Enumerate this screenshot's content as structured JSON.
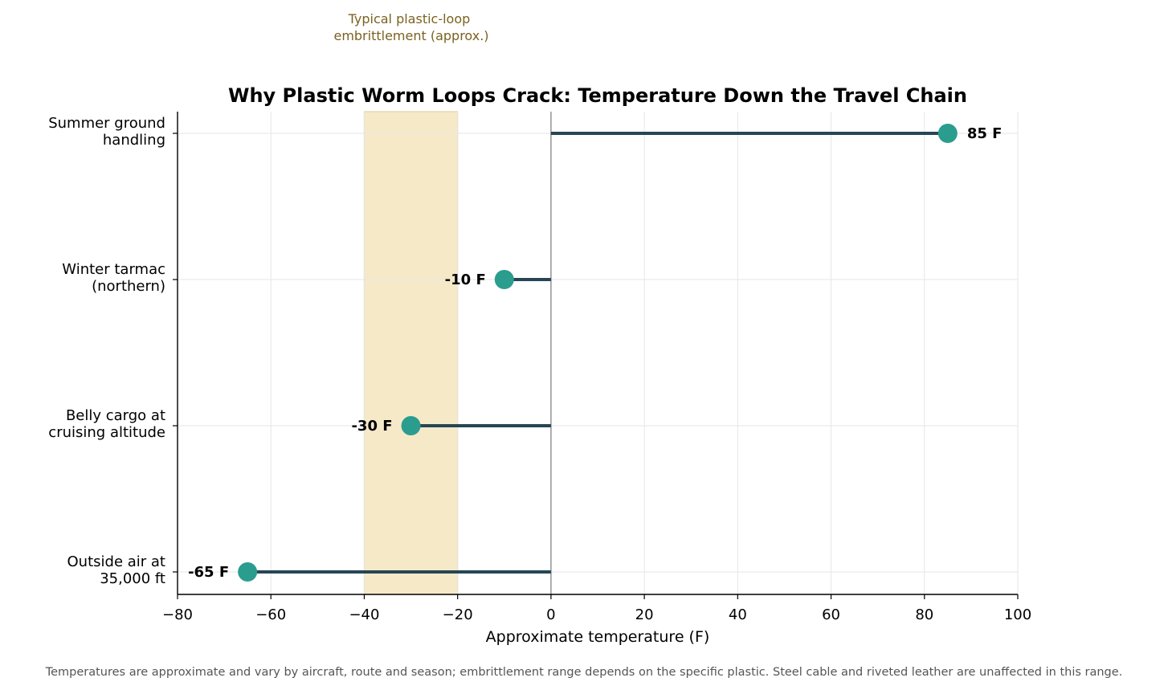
{
  "chart_data": {
    "type": "dot-lollipop",
    "title": "Why Plastic Worm Loops Crack: Temperature Down the Travel Chain",
    "xlabel": "Approximate temperature (F)",
    "xlim": [
      -80,
      100
    ],
    "xticks": [
      -80,
      -60,
      -40,
      -20,
      0,
      20,
      40,
      60,
      80,
      100
    ],
    "xtick_labels": [
      "−80",
      "−60",
      "−40",
      "−20",
      "0",
      "20",
      "40",
      "60",
      "80",
      "100"
    ],
    "grid": "vertical and horizontal, light gray",
    "categories": [
      {
        "label": [
          "Summer ground",
          "handling"
        ],
        "value": 85,
        "value_label": "85 F"
      },
      {
        "label": [
          "Winter tarmac",
          "(northern)"
        ],
        "value": -10,
        "value_label": "-10 F"
      },
      {
        "label": [
          "Belly cargo at",
          "cruising altitude"
        ],
        "value": -30,
        "value_label": "-30 F"
      },
      {
        "label": [
          "Outside air at",
          "35,000 ft"
        ],
        "value": -65,
        "value_label": "-65 F"
      }
    ],
    "shaded_band": {
      "from": -40,
      "to": -20,
      "label": [
        "Typical plastic-loop",
        "embrittlement (approx.)"
      ]
    },
    "reference_line": 0,
    "colors": {
      "marker": "#2a9d8f",
      "stem": "#264653",
      "band": "#f6e9c8",
      "band_edge": "#e4d3a6",
      "band_label": "#7a6220",
      "zero_line": "#9a9a9a",
      "grid": "#e6e6e6"
    }
  },
  "footnote": "Temperatures are approximate and vary by aircraft, route and season; embrittlement range depends on the specific plastic. Steel cable and riveted leather are unaffected in this range."
}
